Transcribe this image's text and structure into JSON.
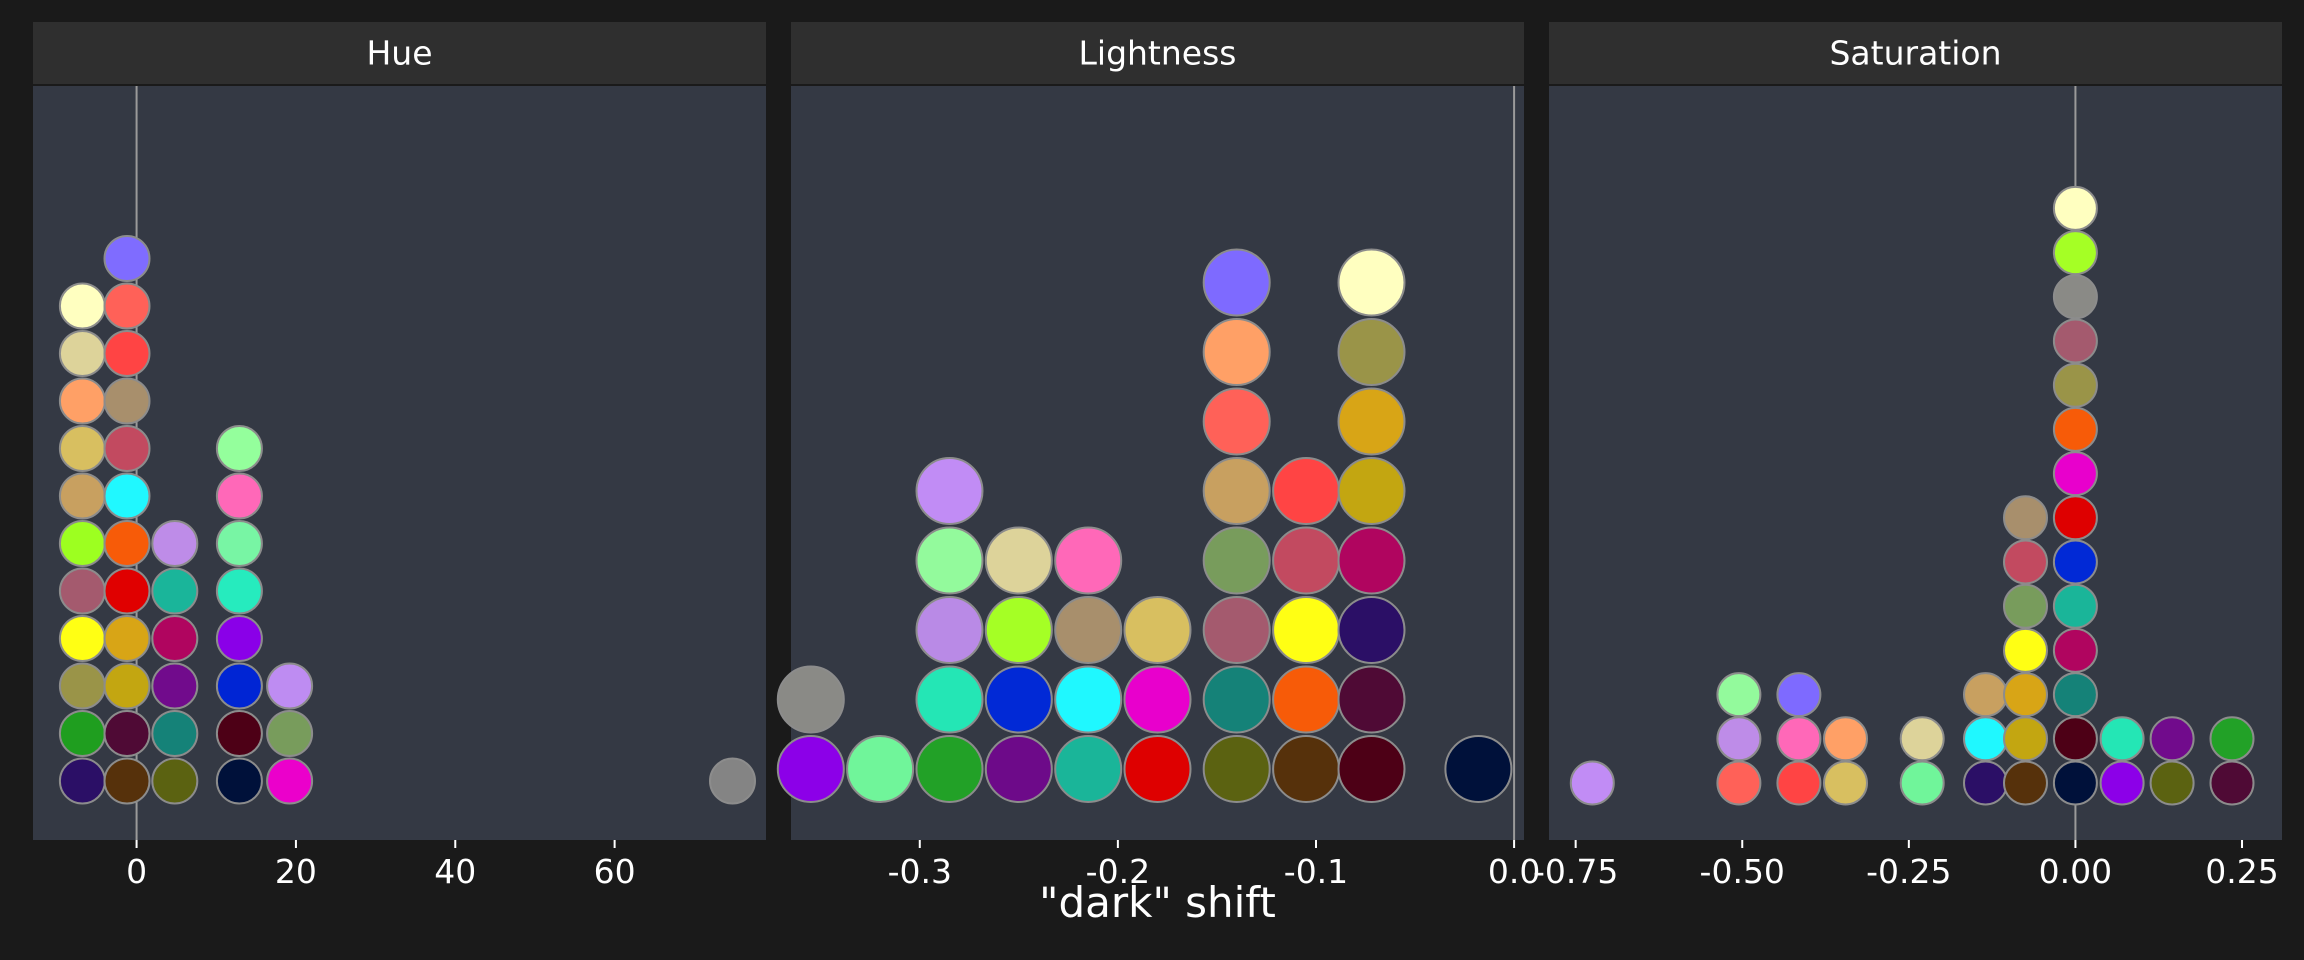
{
  "chart_data": {
    "type": "dotplot",
    "xlabel": "\"dark\" shift",
    "ylabel": "",
    "grid": false,
    "colors": {
      "page_background": "#1a1a1a",
      "panel_background": "#343944",
      "strip_background": "#2f2f2f",
      "reference_line": "#9a9a9a",
      "dot_outline": "#8c8c8c",
      "text": "#ffffff"
    },
    "panels": [
      {
        "title": "Hue",
        "xlim": [
          -13,
          79
        ],
        "ticks": [
          0,
          20,
          40,
          60
        ],
        "tick_labels": [
          "0",
          "20",
          "40",
          "60"
        ],
        "reference": 0,
        "stacks": [
          {
            "x": -6.8,
            "colors": [
              "#2b0f66",
              "#1f9e1f",
              "#9a9448",
              "#ffff14",
              "#a45a6e",
              "#9dff20",
              "#c8a060",
              "#d8bf60",
              "#ffa066",
              "#ddd39a",
              "#ffffc0"
            ]
          },
          {
            "x": -1.2,
            "colors": [
              "#56310b",
              "#4f0a35",
              "#c3a611",
              "#d8a516",
              "#e00000",
              "#f75b08",
              "#20f8ff",
              "#c24a60",
              "#a88f6c",
              "#ff4444",
              "#ff6158",
              "#7f6cff"
            ]
          },
          {
            "x": 4.8,
            "colors": [
              "#5b6211",
              "#158278",
              "#710b8c",
              "#b0055f",
              "#1ab59a",
              "#be8ce8"
            ]
          },
          {
            "x": 12.9,
            "colors": [
              "#00113a",
              "#4d0016",
              "#0025d4",
              "#8a00e8",
              "#26ebbe",
              "#78f5a4",
              "#ff68b8",
              "#94ff9c"
            ]
          },
          {
            "x": 19.2,
            "colors": [
              "#eb00cb",
              "#789c5c",
              "#be8cf2"
            ]
          },
          {
            "x": 74.8,
            "colors": [
              "#848484"
            ]
          }
        ]
      },
      {
        "title": "Lightness",
        "xlim": [
          -0.365,
          0.005
        ],
        "ticks": [
          -0.3,
          -0.2,
          -0.1,
          0.0
        ],
        "tick_labels": [
          "-0.3",
          "-0.2",
          "-0.1",
          "0.0"
        ],
        "reference": 0,
        "stacks": [
          {
            "x": -0.355,
            "colors": [
              "#8c00e8",
              "#8a8a86"
            ]
          },
          {
            "x": -0.32,
            "colors": [
              "#70f59a"
            ]
          },
          {
            "x": -0.285,
            "colors": [
              "#22a127",
              "#24e6b5",
              "#b98ae6",
              "#93fa9c",
              "#c18cf5"
            ]
          },
          {
            "x": -0.25,
            "colors": [
              "#6d0a89",
              "#0129d6",
              "#a5ff25",
              "#ddd39a"
            ]
          },
          {
            "x": -0.215,
            "colors": [
              "#1ab599",
              "#1ff8ff",
              "#a88f6c",
              "#ff68b8"
            ]
          },
          {
            "x": -0.18,
            "colors": [
              "#de0000",
              "#e800cc",
              "#d8bf60"
            ]
          },
          {
            "x": -0.14,
            "colors": [
              "#5b6211",
              "#158278",
              "#a45a6e",
              "#789c5c",
              "#c8a060",
              "#ff6158",
              "#ffa066",
              "#7e6aff"
            ]
          },
          {
            "x": -0.105,
            "colors": [
              "#56310b",
              "#f75b08",
              "#ffff14",
              "#c24a60",
              "#ff4444"
            ]
          },
          {
            "x": -0.072,
            "colors": [
              "#4d0016",
              "#4f0a35",
              "#2b0f66",
              "#b0055f",
              "#c3a611",
              "#d8a516",
              "#9a9448",
              "#ffffc0"
            ]
          },
          {
            "x": -0.018,
            "colors": [
              "#00113a"
            ]
          }
        ]
      },
      {
        "title": "Saturation",
        "xlim": [
          -0.79,
          0.31
        ],
        "ticks": [
          -0.75,
          -0.5,
          -0.25,
          0.0,
          0.25
        ],
        "tick_labels": [
          "-0.75",
          "-0.50",
          "-0.25",
          "0.00",
          "0.25"
        ],
        "reference": 0,
        "stacks": [
          {
            "x": -0.725,
            "colors": [
              "#c18cf5"
            ]
          },
          {
            "x": -0.505,
            "colors": [
              "#ff6158",
              "#be8ce8",
              "#93fa9c"
            ]
          },
          {
            "x": -0.415,
            "colors": [
              "#ff4444",
              "#ff68b8",
              "#7e6aff"
            ]
          },
          {
            "x": -0.345,
            "colors": [
              "#d8bf60",
              "#ffa066"
            ]
          },
          {
            "x": -0.23,
            "colors": [
              "#70f59a",
              "#ddd39a"
            ]
          },
          {
            "x": -0.135,
            "colors": [
              "#2b0f66",
              "#1ff8ff",
              "#c8a060"
            ]
          },
          {
            "x": -0.075,
            "colors": [
              "#56310b",
              "#c3a611",
              "#d8a516",
              "#ffff14",
              "#789c5c",
              "#c24a60",
              "#a88f6c"
            ]
          },
          {
            "x": 0.0,
            "colors": [
              "#00113a",
              "#4d0016",
              "#158278",
              "#b0055f",
              "#1ab599",
              "#0129d6",
              "#de0000",
              "#e800cc",
              "#f75b08",
              "#9a9448",
              "#a45a6e",
              "#8a8a86",
              "#a5ff25",
              "#ffffc0"
            ]
          },
          {
            "x": 0.07,
            "colors": [
              "#8c00e8",
              "#24e6b5"
            ]
          },
          {
            "x": 0.145,
            "colors": [
              "#5b6211",
              "#710b8c"
            ]
          },
          {
            "x": 0.235,
            "colors": [
              "#4f0a35",
              "#22a127"
            ]
          }
        ]
      }
    ]
  }
}
